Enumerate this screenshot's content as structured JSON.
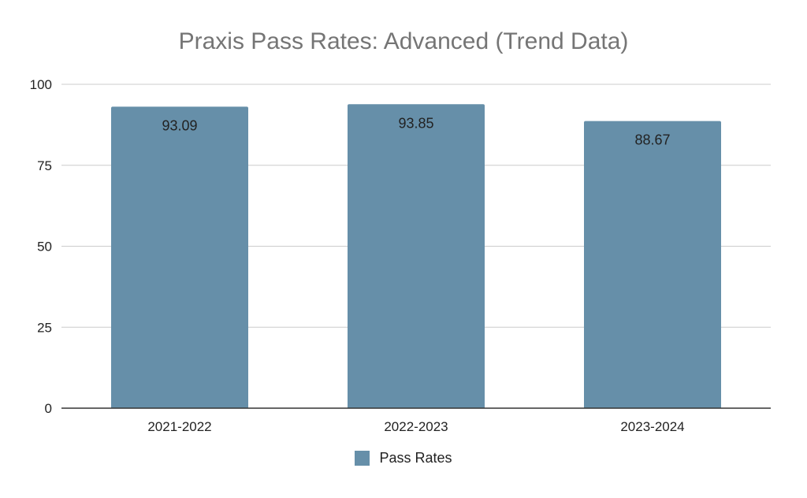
{
  "colors": {
    "bar": "#668fa9",
    "grid": "#cccccc",
    "axis": "#333333",
    "title": "#757575",
    "text": "#222222"
  },
  "chart_data": {
    "type": "bar",
    "title": "Praxis Pass Rates: Advanced (Trend Data)",
    "xlabel": "",
    "ylabel": "",
    "categories": [
      "2021-2022",
      "2022-2023",
      "2023-2024"
    ],
    "series": [
      {
        "name": "Pass Rates",
        "values": [
          93.09,
          93.85,
          88.67
        ],
        "labels": [
          "93.09",
          "93.85",
          "88.67"
        ]
      }
    ],
    "ylim": [
      0,
      100
    ],
    "yticks": [
      0,
      25,
      50,
      75,
      100
    ],
    "grid": true,
    "legend": "bottom"
  }
}
